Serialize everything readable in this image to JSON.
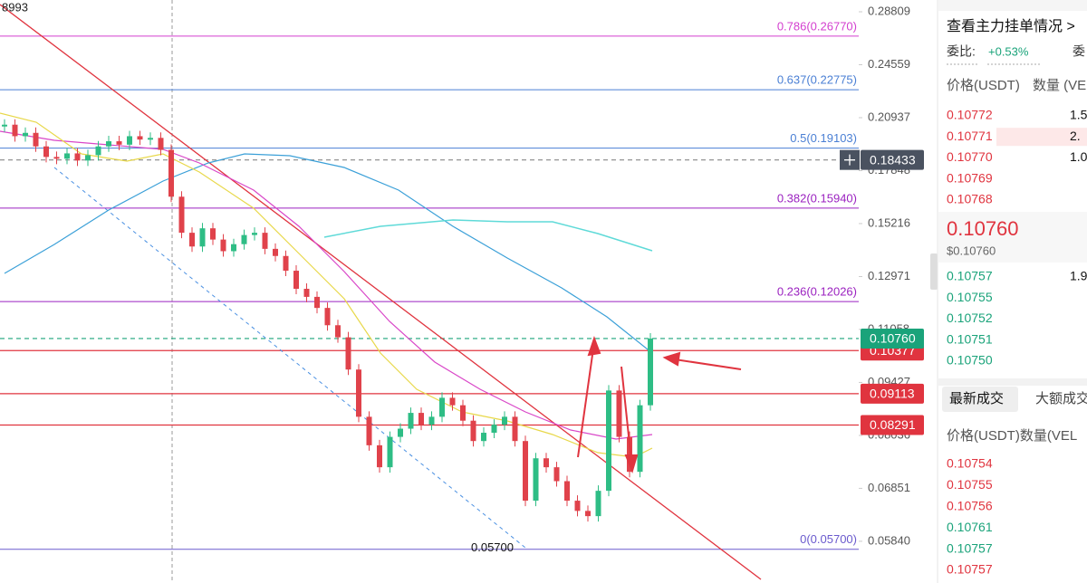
{
  "chart": {
    "scale": "log",
    "ylim": [
      0.0515,
      0.2985
    ],
    "yticks": [
      0.28809,
      0.24559,
      0.20937,
      0.17848,
      0.15216,
      0.12971,
      0.11058,
      0.09427,
      0.08036,
      0.06851,
      {
        "value": 0.0584,
        "label": "0.05840"
      }
    ],
    "fib_levels": [
      {
        "value": 0.2677,
        "label": "0.786(0.26770)",
        "color": "#d33fcf"
      },
      {
        "value": 0.22775,
        "label": "0.637(0.22775)",
        "color": "#4a7fd4"
      },
      {
        "value": 0.19103,
        "label": "0.5(0.19103)",
        "color": "#4a7fd4"
      },
      {
        "value": 0.1594,
        "label": "0.382(0.15940)",
        "color": "#9b22c0"
      },
      {
        "value": 0.12026,
        "label": "0.236(0.12026)",
        "color": "#9b22c0"
      },
      {
        "value": 0.057,
        "label": "0(0.05700)",
        "color": "#6a5acd"
      }
    ],
    "price_tags": [
      {
        "value": 0.18433,
        "label": "0.18433",
        "color": "#4a5260",
        "line": "dashed-gray"
      },
      {
        "value": 0.10377,
        "label": "0.10377",
        "color": "#e0343f",
        "line": "solid-red"
      },
      {
        "value": 0.1076,
        "label": "0.10760",
        "color": "#1aa37a",
        "line": "dashed-green"
      },
      {
        "value": 0.09113,
        "label": "0.09113",
        "color": "#e0343f",
        "line": "solid-red"
      },
      {
        "value": 0.08291,
        "label": "0.08291",
        "color": "#e0343f",
        "line": "solid-red"
      }
    ],
    "closes": [
      0.205,
      0.198,
      0.2,
      0.192,
      0.186,
      0.185,
      0.188,
      0.184,
      0.187,
      0.192,
      0.195,
      0.193,
      0.198,
      0.196,
      0.197,
      0.19,
      0.165,
      0.148,
      0.142,
      0.15,
      0.145,
      0.14,
      0.143,
      0.147,
      0.148,
      0.141,
      0.138,
      0.132,
      0.125,
      0.122,
      0.118,
      0.112,
      0.108,
      0.098,
      0.085,
      0.078,
      0.073,
      0.08,
      0.082,
      0.086,
      0.083,
      0.085,
      0.09,
      0.088,
      0.084,
      0.079,
      0.081,
      0.083,
      0.085,
      0.079,
      0.066,
      0.075,
      0.073,
      0.07,
      0.066,
      0.064,
      0.063,
      0.068,
      0.092,
      0.08,
      0.072,
      0.088,
      0.1076
    ],
    "top_left_label": "8993",
    "low_label": {
      "value": 0.057,
      "label": "0.05700"
    }
  },
  "panel": {
    "title": "查看主力挂单情况 >",
    "ratio_label": "委比:",
    "ratio_value": "+0.53%",
    "ratio_cut": "委",
    "book_header": [
      "价格(USDT)",
      "数量 (VE"
    ],
    "asks": [
      {
        "price": "0.10772",
        "qty": "1.5"
      },
      {
        "price": "0.10771",
        "qty": "2."
      },
      {
        "price": "0.10770",
        "qty": "1.0"
      },
      {
        "price": "0.10769",
        "qty": ""
      },
      {
        "price": "0.10768",
        "qty": ""
      }
    ],
    "last_price": "0.10760",
    "last_price_usd": "$0.10760",
    "bids": [
      {
        "price": "0.10757",
        "qty": "1.9"
      },
      {
        "price": "0.10755",
        "qty": ""
      },
      {
        "price": "0.10752",
        "qty": ""
      },
      {
        "price": "0.10751",
        "qty": ""
      },
      {
        "price": "0.10750",
        "qty": ""
      }
    ],
    "tabs": [
      "最新成交",
      "大额成交"
    ],
    "trades_header": "价格(USDT)数量(VEL",
    "trades": [
      {
        "price": "0.10754",
        "side": "sell"
      },
      {
        "price": "0.10755",
        "side": "sell"
      },
      {
        "price": "0.10756",
        "side": "sell"
      },
      {
        "price": "0.10761",
        "side": "buy"
      },
      {
        "price": "0.10757",
        "side": "buy"
      },
      {
        "price": "0.10757",
        "side": "sell"
      }
    ]
  }
}
